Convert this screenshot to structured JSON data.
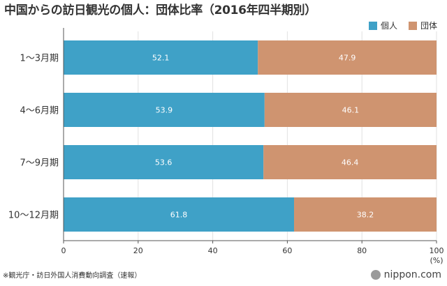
{
  "title": "中国からの訪日観光の個人：団体比率（2016年四半期別）",
  "source": "※観光庁・訪日外国人消費動向調査（速報）",
  "brand": "nippon.com",
  "colors": {
    "series1": "#3fa1c7",
    "series2": "#cf9470",
    "grid": "#e2e2e2",
    "axis": "#555555"
  },
  "chart_data": {
    "type": "bar",
    "orientation": "horizontal",
    "stacked": true,
    "categories": [
      "1～3月期",
      "4～6月期",
      "7～9月期",
      "10～12月期"
    ],
    "series": [
      {
        "name": "個人",
        "values": [
          52.1,
          53.9,
          53.6,
          61.8
        ]
      },
      {
        "name": "団体",
        "values": [
          47.9,
          46.1,
          46.4,
          38.2
        ]
      }
    ],
    "xlim": [
      0,
      100
    ],
    "xticks": [
      0,
      20,
      40,
      60,
      80,
      100
    ],
    "xunit": "(%)",
    "legend": "top-right",
    "grid": true
  }
}
